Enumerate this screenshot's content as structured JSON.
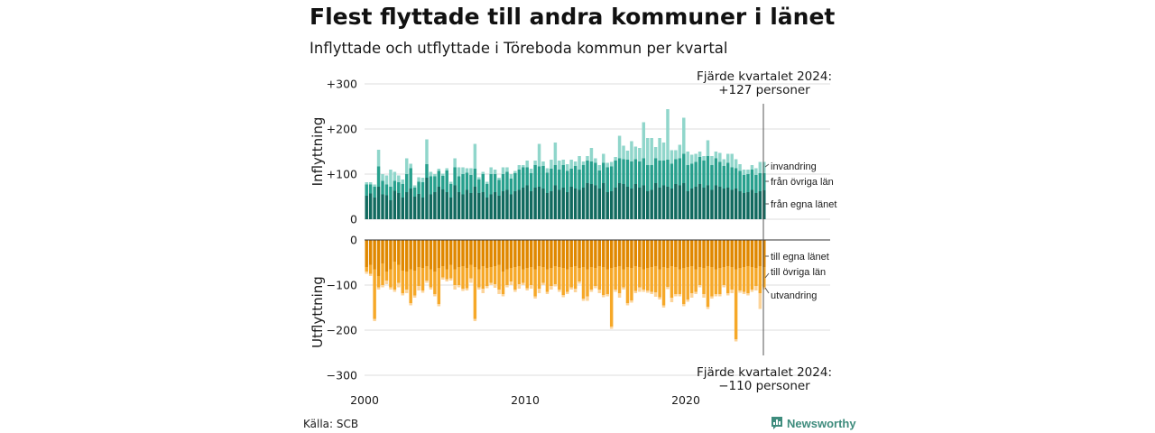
{
  "title": "Flest flyttade till andra kommuner i länet",
  "subtitle": "Inflyttade och utflyttade i Töreboda kommun per kvartal",
  "source": "Källa: SCB",
  "brand": {
    "name": "Newsworthy",
    "icon": "newsworthy-logo-icon"
  },
  "colors": {
    "in_own_county": "#116a5f",
    "in_other_counties": "#27a08d",
    "in_immigration": "#90d6cb",
    "out_own_county": "#e08800",
    "out_other_counties": "#f6a828",
    "out_emigration": "#fcd49a",
    "grid": "#dddddd",
    "axis": "#333333"
  },
  "chart_data": [
    {
      "type": "bar",
      "stacked": true,
      "ylabel": "Inflyttning",
      "ylim": [
        0,
        300
      ],
      "yticks": [
        0,
        100,
        200,
        300
      ],
      "ytick_labels": [
        "0",
        "+100",
        "+200",
        "+300"
      ],
      "xticks": [
        2000,
        2010,
        2020
      ],
      "grid": true,
      "callout": {
        "line1": "Fjärde kvartalet 2024:",
        "line2": "+127 personer",
        "value": 127
      },
      "series_labels": {
        "from_own_county": "från egna länet",
        "from_other_counties": "från övriga län",
        "immigration": "invandring"
      },
      "x_start": "2000 Q1",
      "x_end": "2024 Q4",
      "series": [
        {
          "name": "från egna länet",
          "values": [
            52,
            57,
            48,
            72,
            55,
            53,
            42,
            63,
            58,
            48,
            60,
            68,
            50,
            56,
            48,
            92,
            55,
            60,
            72,
            66,
            60,
            48,
            75,
            60,
            55,
            65,
            58,
            72,
            58,
            60,
            48,
            55,
            60,
            52,
            62,
            65,
            55,
            62,
            65,
            70,
            75,
            62,
            70,
            72,
            68,
            58,
            62,
            75,
            65,
            70,
            60,
            72,
            68,
            65,
            70,
            80,
            78,
            75,
            68,
            80,
            60,
            62,
            70,
            80,
            78,
            72,
            68,
            78,
            70,
            75,
            62,
            65,
            80,
            70,
            75,
            72,
            68,
            78,
            75,
            80,
            62,
            68,
            72,
            78,
            70,
            75,
            65,
            75,
            72,
            68,
            70,
            65,
            68,
            62,
            58,
            60,
            65,
            58,
            62,
            64
          ]
        },
        {
          "name": "från övriga län",
          "values": [
            25,
            20,
            24,
            45,
            30,
            24,
            30,
            22,
            24,
            30,
            40,
            45,
            20,
            27,
            34,
            30,
            40,
            35,
            35,
            30,
            48,
            30,
            40,
            35,
            45,
            38,
            40,
            40,
            30,
            40,
            30,
            45,
            40,
            35,
            38,
            40,
            35,
            40,
            45,
            45,
            40,
            40,
            50,
            45,
            50,
            45,
            50,
            45,
            45,
            50,
            47,
            40,
            50,
            45,
            50,
            50,
            50,
            50,
            40,
            45,
            55,
            55,
            60,
            55,
            55,
            60,
            60,
            55,
            58,
            60,
            58,
            55,
            55,
            60,
            55,
            60,
            55,
            55,
            60,
            65,
            58,
            55,
            55,
            60,
            60,
            65,
            55,
            60,
            55,
            50,
            55,
            50,
            45,
            45,
            40,
            40,
            45,
            40,
            40,
            38
          ]
        },
        {
          "name": "invandring",
          "values": [
            5,
            5,
            5,
            37,
            15,
            20,
            38,
            20,
            15,
            10,
            35,
            10,
            5,
            10,
            10,
            55,
            10,
            5,
            5,
            5,
            5,
            5,
            20,
            20,
            15,
            10,
            15,
            55,
            5,
            5,
            5,
            15,
            10,
            5,
            15,
            10,
            10,
            5,
            10,
            5,
            15,
            10,
            10,
            50,
            10,
            10,
            20,
            50,
            20,
            12,
            15,
            20,
            10,
            30,
            8,
            10,
            30,
            10,
            12,
            20,
            10,
            10,
            8,
            50,
            30,
            20,
            45,
            28,
            30,
            80,
            60,
            60,
            25,
            50,
            40,
            112,
            30,
            20,
            30,
            80,
            30,
            20,
            18,
            12,
            10,
            35,
            20,
            15,
            20,
            15,
            20,
            30,
            20,
            15,
            12,
            10,
            10,
            15,
            25,
            25
          ]
        }
      ]
    },
    {
      "type": "bar",
      "stacked": true,
      "ylabel": "Utflyttning",
      "ylim": [
        -300,
        0
      ],
      "yticks": [
        0,
        -100,
        -200,
        -300
      ],
      "ytick_labels": [
        "0",
        "−100",
        "−200",
        "−300"
      ],
      "xticks": [
        2000,
        2010,
        2020
      ],
      "xtick_labels": [
        "2000",
        "2010",
        "2020"
      ],
      "grid": true,
      "callout": {
        "line1": "Fjärde kvartalet 2024:",
        "line2": "−110 personer",
        "value": -110
      },
      "series_labels": {
        "to_own_county": "till egna länet",
        "to_other_counties": "till övriga län",
        "emigration": "utvandring"
      },
      "x_start": "2000 Q1",
      "x_end": "2024 Q4",
      "series": [
        {
          "name": "till egna länet",
          "values": [
            -60,
            -55,
            -65,
            -80,
            -52,
            -70,
            -65,
            -48,
            -55,
            -68,
            -70,
            -65,
            -68,
            -60,
            -62,
            -58,
            -65,
            -70,
            -62,
            -58,
            -65,
            -55,
            -65,
            -60,
            -58,
            -62,
            -55,
            -60,
            -65,
            -58,
            -62,
            -60,
            -58,
            -55,
            -70,
            -65,
            -62,
            -60,
            -58,
            -65,
            -62,
            -60,
            -65,
            -58,
            -60,
            -65,
            -62,
            -58,
            -60,
            -62,
            -65,
            -60,
            -58,
            -62,
            -60,
            -65,
            -60,
            -62,
            -58,
            -60,
            -65,
            -62,
            -60,
            -58,
            -65,
            -60,
            -62,
            -58,
            -60,
            -65,
            -62,
            -60,
            -58,
            -65,
            -60,
            -62,
            -58,
            -60,
            -65,
            -62,
            -60,
            -58,
            -65,
            -60,
            -62,
            -58,
            -60,
            -65,
            -62,
            -60,
            -58,
            -60,
            -65,
            -62,
            -60,
            -58,
            -60,
            -62,
            -58,
            -60
          ]
        },
        {
          "name": "till övriga län",
          "values": [
            -10,
            -20,
            -110,
            -25,
            -48,
            -20,
            -40,
            -62,
            -40,
            -50,
            -40,
            -75,
            -55,
            -42,
            -50,
            -32,
            -40,
            -50,
            -80,
            -25,
            -22,
            -30,
            -35,
            -40,
            -50,
            -45,
            -30,
            -115,
            -40,
            -50,
            -40,
            -35,
            -40,
            -55,
            -50,
            -35,
            -30,
            -50,
            -40,
            -30,
            -45,
            -40,
            -60,
            -50,
            -35,
            -50,
            -40,
            -40,
            -50,
            -60,
            -50,
            -45,
            -50,
            -30,
            -70,
            -60,
            -50,
            -40,
            -52,
            -62,
            -55,
            -130,
            -50,
            -60,
            -40,
            -80,
            -72,
            -55,
            -45,
            -45,
            -50,
            -55,
            -58,
            -62,
            -85,
            -42,
            -70,
            -60,
            -55,
            -80,
            -72,
            -60,
            -50,
            -40,
            -58,
            -90,
            -65,
            -55,
            -58,
            -40,
            -60,
            -50,
            -155,
            -50,
            -55,
            -60,
            -50,
            -40,
            -60,
            -45
          ]
        },
        {
          "name": "utvandring",
          "values": [
            -5,
            -5,
            -5,
            -5,
            -5,
            -8,
            -5,
            -5,
            -10,
            -5,
            -8,
            -5,
            -5,
            -10,
            -5,
            -5,
            -5,
            -5,
            -5,
            -5,
            -5,
            -5,
            -10,
            -5,
            -5,
            -5,
            -10,
            -5,
            -5,
            -10,
            -5,
            -5,
            -8,
            -10,
            -5,
            -5,
            -8,
            -5,
            -10,
            -5,
            -5,
            -8,
            -5,
            -10,
            -5,
            -5,
            -8,
            -5,
            -5,
            -5,
            -5,
            -5,
            -8,
            -5,
            -5,
            -10,
            -5,
            -5,
            -8,
            -5,
            -5,
            -5,
            -5,
            -10,
            -5,
            -5,
            -5,
            -5,
            -10,
            -5,
            -5,
            -5,
            -10,
            -5,
            -5,
            -5,
            -10,
            -5,
            -5,
            -5,
            -5,
            -10,
            -5,
            -5,
            -8,
            -5,
            -5,
            -5,
            -5,
            -5,
            -5,
            -8,
            -5,
            -5,
            -5,
            -5,
            -5,
            -10,
            -35,
            -5
          ]
        }
      ]
    }
  ]
}
